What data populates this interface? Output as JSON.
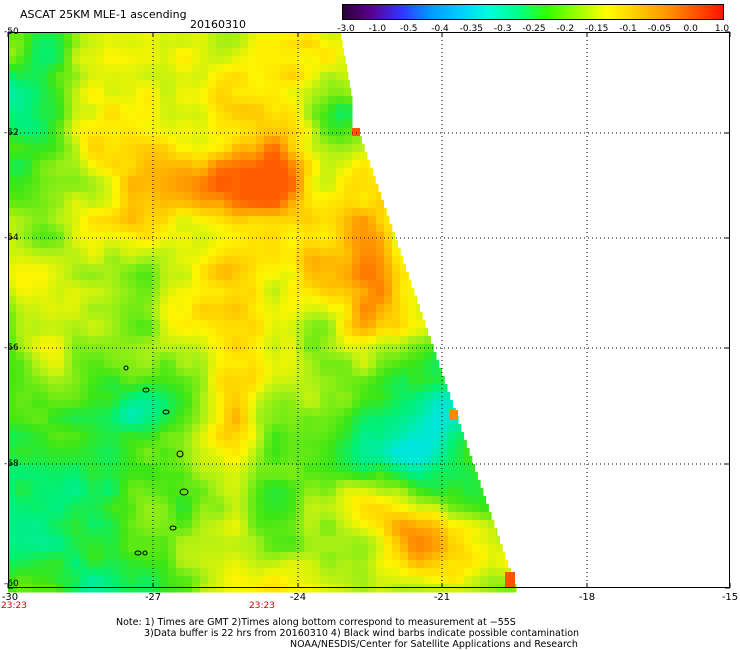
{
  "header": {
    "title": "ASCAT 25KM MLE-1 ascending",
    "date": "20160310"
  },
  "colorbar": {
    "labels": [
      "-3.0",
      "-1.0",
      "-0.5",
      "-0.4",
      "-0.35",
      "-0.3",
      "-0.25",
      "-0.2",
      "-0.15",
      "-0.1",
      "-0.05",
      "0.0",
      "1.0"
    ],
    "colors": [
      "#2a0033",
      "#5a0090",
      "#3333ff",
      "#0099ff",
      "#00ccff",
      "#00ffdd",
      "#00ff88",
      "#33ff00",
      "#99ff00",
      "#ffff00",
      "#ffcc00",
      "#ff9900",
      "#ff5500",
      "#ff1100"
    ]
  },
  "map": {
    "lat_labels": [
      "-50",
      "-52",
      "-54",
      "-56",
      "-58",
      "-60"
    ],
    "lon_labels": [
      "-30",
      "-27",
      "-24",
      "-21",
      "-18",
      "-15"
    ],
    "time_labels": [
      "23:23",
      "23:23"
    ]
  },
  "footer": {
    "line1": "Note: 1) Times are GMT 2)Times along bottom correspond to measurement at −55S",
    "line2": "3)Data buffer is 22 hrs from 20160310 4) Black wind barbs indicate possible contamination",
    "line3": "NOAA/NESDIS/Center for Satellite Applications and Research"
  }
}
